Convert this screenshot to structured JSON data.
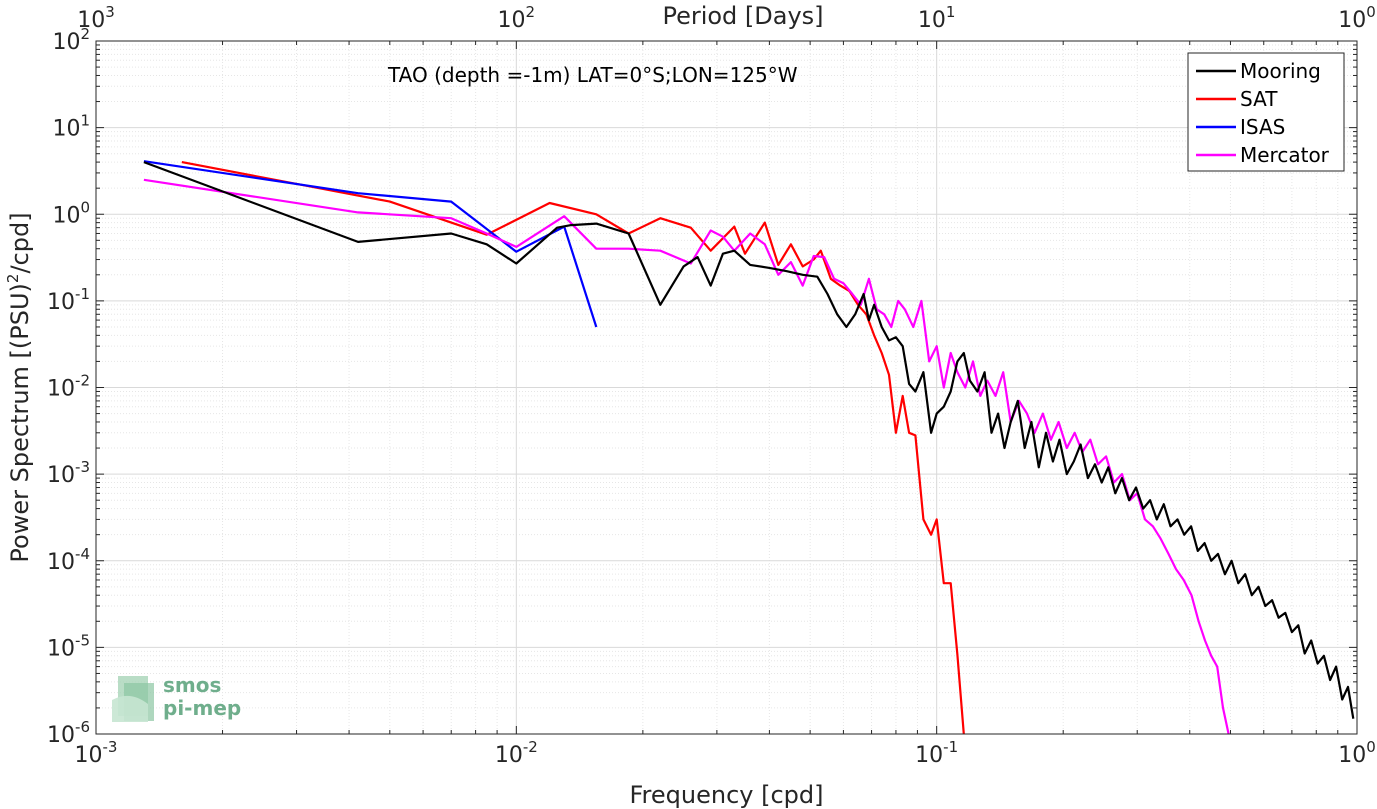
{
  "chart_data": {
    "type": "line",
    "annotation": "TAO (depth =-1m) LAT=0°S;LON=125°W",
    "xlabel": "Frequency [cpd]",
    "ylabel": "Power Spectrum [(PSU)",
    "ylabel_sup": "2",
    "ylabel_tail": "/cpd]",
    "top_xlabel": "Period [Days]",
    "x_scale": "log",
    "y_scale": "log",
    "xlim": [
      0.001,
      1
    ],
    "ylim": [
      1e-06,
      100
    ],
    "grid": true,
    "legend_position": "top-right",
    "x_ticks": [
      {
        "value": 0.001,
        "base": "10",
        "exp": "-3"
      },
      {
        "value": 0.01,
        "base": "10",
        "exp": "-2"
      },
      {
        "value": 0.1,
        "base": "10",
        "exp": "-1"
      },
      {
        "value": 1,
        "base": "10",
        "exp": "0"
      }
    ],
    "y_ticks": [
      {
        "value": 1e-06,
        "base": "10",
        "exp": "-6"
      },
      {
        "value": 1e-05,
        "base": "10",
        "exp": "-5"
      },
      {
        "value": 0.0001,
        "base": "10",
        "exp": "-4"
      },
      {
        "value": 0.001,
        "base": "10",
        "exp": "-3"
      },
      {
        "value": 0.01,
        "base": "10",
        "exp": "-2"
      },
      {
        "value": 0.1,
        "base": "10",
        "exp": "-1"
      },
      {
        "value": 1,
        "base": "10",
        "exp": "0"
      },
      {
        "value": 10,
        "base": "10",
        "exp": "1"
      },
      {
        "value": 100,
        "base": "10",
        "exp": "2"
      }
    ],
    "top_ticks": [
      {
        "freq": 0.001,
        "base": "10",
        "exp": "3"
      },
      {
        "freq": 0.01,
        "base": "10",
        "exp": "2"
      },
      {
        "freq": 0.1,
        "base": "10",
        "exp": "1"
      },
      {
        "freq": 1,
        "base": "10",
        "exp": "0"
      }
    ],
    "series": [
      {
        "name": "Mooring",
        "color": "#000000",
        "x": [
          0.0013,
          0.0042,
          0.007,
          0.0085,
          0.01,
          0.0125,
          0.0135,
          0.0155,
          0.0185,
          0.022,
          0.025,
          0.027,
          0.029,
          0.031,
          0.033,
          0.036,
          0.04,
          0.044,
          0.048,
          0.052,
          0.055,
          0.058,
          0.061,
          0.064,
          0.067,
          0.069,
          0.071,
          0.074,
          0.077,
          0.08,
          0.083,
          0.086,
          0.089,
          0.093,
          0.097,
          0.1,
          0.104,
          0.108,
          0.112,
          0.116,
          0.12,
          0.125,
          0.13,
          0.135,
          0.14,
          0.145,
          0.15,
          0.156,
          0.162,
          0.168,
          0.175,
          0.182,
          0.189,
          0.196,
          0.204,
          0.212,
          0.22,
          0.229,
          0.238,
          0.247,
          0.256,
          0.266,
          0.276,
          0.287,
          0.298,
          0.31,
          0.322,
          0.334,
          0.347,
          0.36,
          0.374,
          0.388,
          0.403,
          0.418,
          0.434,
          0.45,
          0.467,
          0.485,
          0.503,
          0.522,
          0.542,
          0.562,
          0.583,
          0.605,
          0.628,
          0.651,
          0.675,
          0.7,
          0.725,
          0.751,
          0.778,
          0.806,
          0.834,
          0.863,
          0.892,
          0.922,
          0.952,
          0.98
        ],
        "y": [
          4.0,
          0.48,
          0.6,
          0.45,
          0.27,
          0.7,
          0.75,
          0.78,
          0.6,
          0.09,
          0.25,
          0.32,
          0.15,
          0.35,
          0.38,
          0.26,
          0.24,
          0.22,
          0.2,
          0.19,
          0.12,
          0.07,
          0.05,
          0.07,
          0.12,
          0.06,
          0.09,
          0.05,
          0.035,
          0.038,
          0.03,
          0.011,
          0.009,
          0.015,
          0.003,
          0.005,
          0.006,
          0.009,
          0.02,
          0.025,
          0.012,
          0.009,
          0.015,
          0.003,
          0.005,
          0.002,
          0.004,
          0.007,
          0.002,
          0.004,
          0.0012,
          0.003,
          0.0014,
          0.0025,
          0.001,
          0.0014,
          0.0022,
          0.0009,
          0.0013,
          0.0008,
          0.0012,
          0.0006,
          0.0009,
          0.0005,
          0.0007,
          0.0004,
          0.0005,
          0.0003,
          0.00045,
          0.00025,
          0.0003,
          0.0002,
          0.00025,
          0.00013,
          0.00016,
          0.0001,
          0.00012,
          7e-05,
          0.0001,
          5.5e-05,
          7e-05,
          4e-05,
          5e-05,
          3e-05,
          3.5e-05,
          2.2e-05,
          2.5e-05,
          1.5e-05,
          1.8e-05,
          8.5e-06,
          1.2e-05,
          6.5e-06,
          8e-06,
          4.2e-06,
          6e-06,
          2.5e-06,
          3.5e-06,
          1.5e-06
        ]
      },
      {
        "name": "SAT",
        "color": "#ff0000",
        "x": [
          0.0016,
          0.005,
          0.0085,
          0.012,
          0.0155,
          0.0185,
          0.022,
          0.026,
          0.029,
          0.033,
          0.035,
          0.039,
          0.042,
          0.045,
          0.048,
          0.051,
          0.053,
          0.056,
          0.059,
          0.062,
          0.065,
          0.068,
          0.071,
          0.074,
          0.077,
          0.08,
          0.083,
          0.086,
          0.089,
          0.093,
          0.097,
          0.1,
          0.104,
          0.108,
          0.112,
          0.116
        ],
        "y": [
          4.0,
          1.4,
          0.58,
          1.35,
          1.0,
          0.6,
          0.9,
          0.7,
          0.38,
          0.72,
          0.35,
          0.8,
          0.26,
          0.45,
          0.25,
          0.3,
          0.38,
          0.18,
          0.15,
          0.13,
          0.09,
          0.07,
          0.04,
          0.025,
          0.014,
          0.003,
          0.008,
          0.003,
          0.0028,
          0.0003,
          0.0002,
          0.0003,
          5.5e-05,
          5.5e-05,
          8.2e-06,
          1e-06
        ]
      },
      {
        "name": "ISAS",
        "color": "#0000ff",
        "x": [
          0.0013,
          0.0042,
          0.007,
          0.01,
          0.013,
          0.0155
        ],
        "y": [
          4.1,
          1.75,
          1.4,
          0.37,
          0.72,
          0.05
        ]
      },
      {
        "name": "Mercator",
        "color": "#ff00ff",
        "x": [
          0.0013,
          0.0042,
          0.007,
          0.0085,
          0.01,
          0.013,
          0.0155,
          0.0185,
          0.022,
          0.026,
          0.029,
          0.031,
          0.033,
          0.036,
          0.039,
          0.042,
          0.045,
          0.048,
          0.051,
          0.054,
          0.057,
          0.06,
          0.063,
          0.066,
          0.069,
          0.072,
          0.075,
          0.078,
          0.081,
          0.084,
          0.088,
          0.092,
          0.096,
          0.1,
          0.104,
          0.108,
          0.112,
          0.117,
          0.122,
          0.127,
          0.132,
          0.138,
          0.144,
          0.15,
          0.157,
          0.164,
          0.171,
          0.179,
          0.187,
          0.195,
          0.204,
          0.213,
          0.222,
          0.232,
          0.242,
          0.253,
          0.264,
          0.276,
          0.288,
          0.3,
          0.313,
          0.327,
          0.341,
          0.356,
          0.371,
          0.387,
          0.404,
          0.42,
          0.435,
          0.45,
          0.465,
          0.48,
          0.495
        ],
        "y": [
          2.5,
          1.05,
          0.9,
          0.6,
          0.42,
          0.95,
          0.4,
          0.4,
          0.38,
          0.27,
          0.65,
          0.55,
          0.38,
          0.6,
          0.45,
          0.2,
          0.28,
          0.15,
          0.33,
          0.32,
          0.18,
          0.16,
          0.12,
          0.09,
          0.18,
          0.08,
          0.07,
          0.05,
          0.1,
          0.08,
          0.05,
          0.1,
          0.02,
          0.03,
          0.01,
          0.025,
          0.015,
          0.01,
          0.02,
          0.008,
          0.012,
          0.008,
          0.015,
          0.004,
          0.007,
          0.005,
          0.003,
          0.005,
          0.0025,
          0.004,
          0.002,
          0.003,
          0.0018,
          0.0025,
          0.0013,
          0.0016,
          0.0008,
          0.001,
          0.0005,
          0.0006,
          0.0003,
          0.00025,
          0.00018,
          0.00012,
          8e-05,
          6e-05,
          4e-05,
          2e-05,
          1.2e-05,
          8e-06,
          6e-06,
          2e-06,
          1e-06
        ]
      }
    ]
  },
  "logo": {
    "line1": "smos",
    "line2": "pi-mep"
  }
}
